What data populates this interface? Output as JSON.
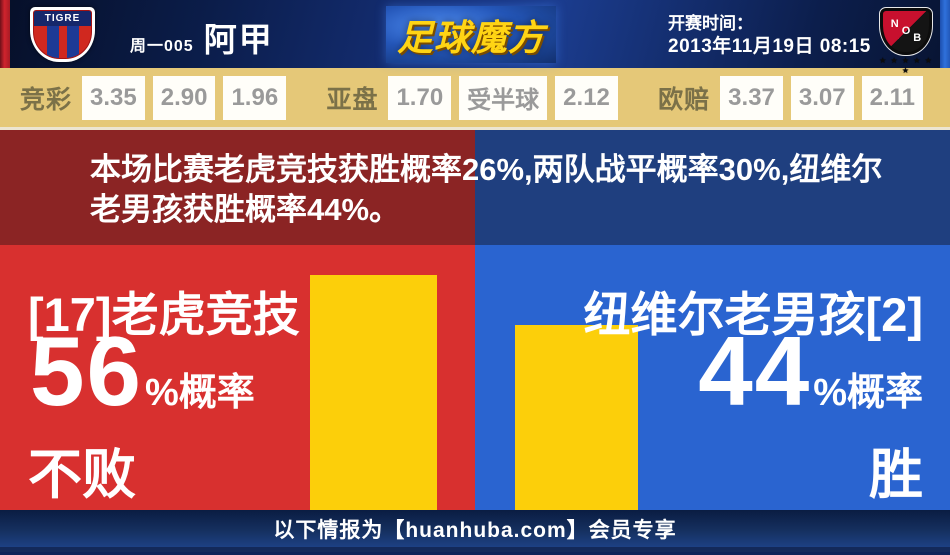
{
  "header": {
    "home_badge_text": "TIGRE",
    "match_no": "周一005",
    "league": "阿甲",
    "site_logo": "足球魔方",
    "kickoff_label": "开赛时间：",
    "kickoff_time": "2013年11月19日 08:15",
    "away_badge_text": "NOB",
    "away_badge_stars": "★ ★ ★ ★ ★ ★"
  },
  "odds": {
    "groups": [
      {
        "label": "竞彩",
        "values": [
          "3.35",
          "2.90",
          "1.96"
        ]
      },
      {
        "label": "亚盘",
        "values": [
          "1.70",
          "受半球",
          "2.12"
        ]
      },
      {
        "label": "欧赔",
        "values": [
          "3.37",
          "3.07",
          "2.11"
        ]
      }
    ]
  },
  "summary": "本场比赛老虎竞技获胜概率26%,两队战平概率30%,纽维尔老男孩获胜概率44%。",
  "home": {
    "name": "[17]老虎竞技",
    "percent": "56",
    "percent_suffix": "%概率",
    "outcome": "不败"
  },
  "away": {
    "name": "纽维尔老男孩[2]",
    "percent": "44",
    "percent_suffix": "%概率",
    "outcome": "胜"
  },
  "footer": {
    "text": "以下情报为【huanhuba.com】会员专享"
  },
  "colors": {
    "home_red": "#d8302f",
    "away_blue": "#2a64d0",
    "home_dark_red": "#8b2424",
    "away_dark_blue": "#1f3f7f",
    "bar_yellow": "#fccf0a",
    "odds_tan": "#e5c878"
  },
  "chart_data": {
    "type": "bar",
    "categories": [
      "[17]老虎竞技",
      "纽维尔老男孩[2]"
    ],
    "values": [
      56,
      44
    ],
    "unit": "%",
    "value_labels": [
      "56%概率 不败",
      "44%概率 胜"
    ],
    "bar_color": "#fccf0a",
    "orientation": "vertical",
    "pixels_per_percent": 4.2,
    "context": {
      "home_win_pct": 26,
      "draw_pct": 30,
      "away_win_pct": 44
    }
  }
}
